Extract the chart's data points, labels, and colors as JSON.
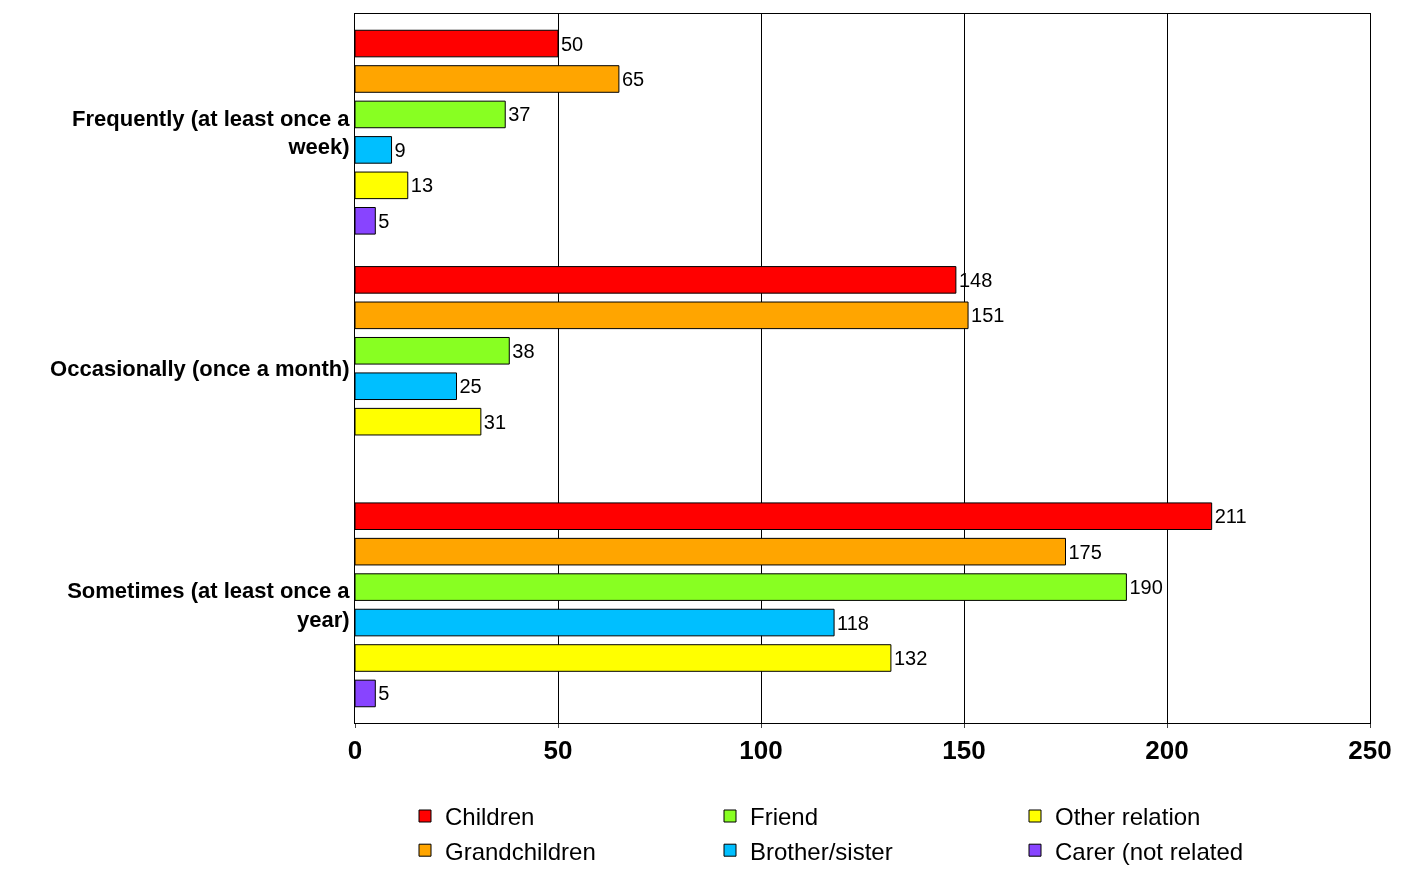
{
  "chart_data": {
    "type": "bar",
    "orientation": "horizontal",
    "categories": [
      "Frequently (at least once a week)",
      "Occasionally (once a month)",
      "Sometimes (at least once a year)"
    ],
    "series": [
      {
        "name": "Children",
        "color": "#ff0000",
        "values": [
          50,
          148,
          211
        ]
      },
      {
        "name": "Grandchildren",
        "color": "#ffa500",
        "values": [
          65,
          151,
          175
        ]
      },
      {
        "name": "Friend",
        "color": "#88ff22",
        "values": [
          37,
          38,
          190
        ]
      },
      {
        "name": "Brother/sister",
        "color": "#00bfff",
        "values": [
          9,
          25,
          118
        ]
      },
      {
        "name": "Other relation",
        "color": "#ffff00",
        "values": [
          13,
          31,
          132
        ]
      },
      {
        "name": "Carer (not related",
        "color": "#8844ff",
        "values": [
          5,
          null,
          5
        ],
        "value_labels": [
          "5",
          null,
          "5"
        ]
      }
    ],
    "xlim": [
      0,
      250
    ],
    "xticks": [
      0,
      50,
      100,
      150,
      200,
      250
    ],
    "grid": "x",
    "legend": "bottom",
    "data_labels": true
  }
}
